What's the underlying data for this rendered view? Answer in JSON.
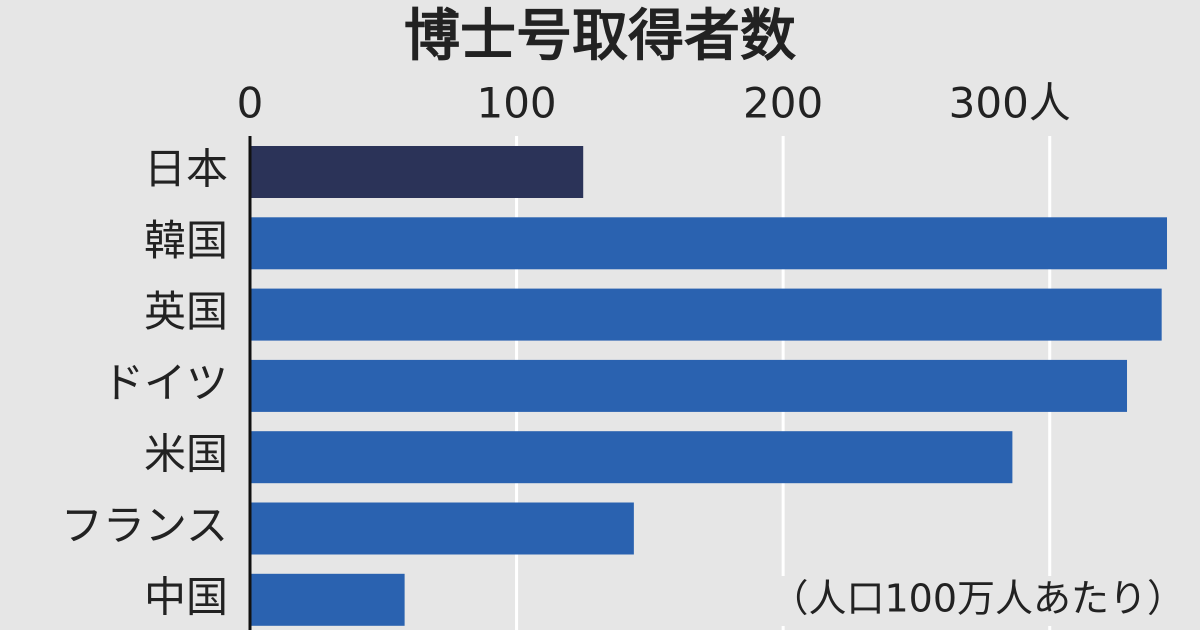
{
  "chart_data": {
    "type": "hbar",
    "title": "博士号取得者数",
    "note": "（人口100万人あたり）",
    "categories": [
      "日本",
      "韓国",
      "英国",
      "ドイツ",
      "米国",
      "フランス",
      "中国"
    ],
    "values": [
      125,
      344,
      342,
      329,
      286,
      144,
      58
    ],
    "colors": [
      "#2b3358",
      "#2a62b0",
      "#2a62b0",
      "#2a62b0",
      "#2a62b0",
      "#2a62b0",
      "#2a62b0"
    ],
    "xlim": [
      0,
      350
    ],
    "xticks": [
      0,
      100,
      200,
      {
        "value": 300,
        "label": "300人"
      }
    ],
    "grid": true
  }
}
